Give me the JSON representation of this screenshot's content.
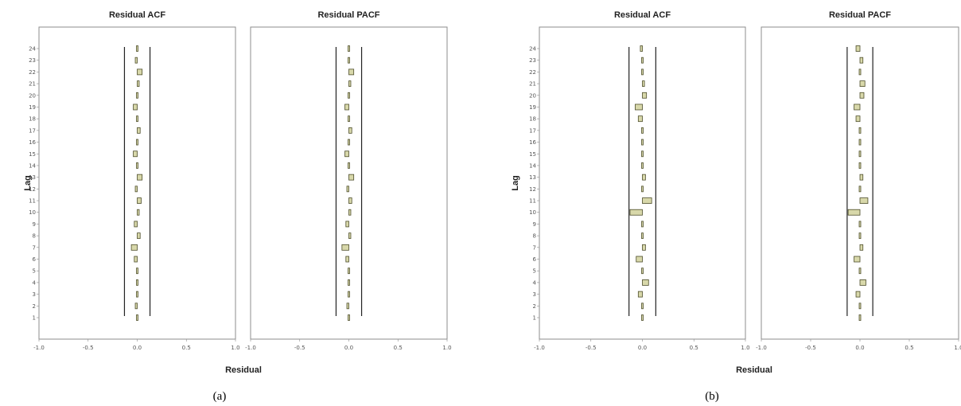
{
  "colors": {
    "bar_fill": "#d8d8aa",
    "bar_stroke": "#4d4d2a",
    "frame": "#8c8c8c",
    "limit": "#222222"
  },
  "figures": [
    {
      "caption": "(a)",
      "ylabel": "Lag",
      "xlabel": "Residual"
    },
    {
      "caption": "(b)",
      "ylabel": "Lag",
      "xlabel": "Residual"
    }
  ],
  "chart_data": [
    {
      "type": "bar",
      "orientation": "horizontal",
      "figure": "(a)",
      "title": "Residual ACF",
      "xlabel": "Residual",
      "ylabel": "Lag",
      "xlim": [
        -1.0,
        1.0
      ],
      "xticks": [
        "-1.0",
        "-0.5",
        "0.0",
        "0.5",
        "1.0"
      ],
      "categories": [
        1,
        2,
        3,
        4,
        5,
        6,
        7,
        8,
        9,
        10,
        11,
        12,
        13,
        14,
        15,
        16,
        17,
        18,
        19,
        20,
        21,
        22,
        23,
        24
      ],
      "values": [
        0.01,
        -0.02,
        0.01,
        0.0,
        -0.01,
        -0.03,
        -0.06,
        0.03,
        -0.03,
        0.02,
        0.04,
        -0.02,
        0.05,
        -0.01,
        -0.04,
        0.01,
        0.03,
        -0.01,
        -0.04,
        0.01,
        0.02,
        0.05,
        -0.02,
        0.01
      ],
      "confidence_limits": [
        -0.13,
        0.13
      ]
    },
    {
      "type": "bar",
      "orientation": "horizontal",
      "figure": "(a)",
      "title": "Residual PACF",
      "xlabel": "Residual",
      "ylabel": "Lag",
      "xlim": [
        -1.0,
        1.0
      ],
      "xticks": [
        "-1.0",
        "-0.5",
        "0.0",
        "0.5",
        "1.0"
      ],
      "categories": [
        1,
        2,
        3,
        4,
        5,
        6,
        7,
        8,
        9,
        10,
        11,
        12,
        13,
        14,
        15,
        16,
        17,
        18,
        19,
        20,
        21,
        22,
        23,
        24
      ],
      "values": [
        0.01,
        -0.02,
        0.01,
        0.0,
        -0.01,
        -0.03,
        -0.07,
        0.02,
        -0.03,
        0.02,
        0.03,
        -0.02,
        0.05,
        -0.01,
        -0.04,
        0.01,
        0.03,
        -0.01,
        -0.04,
        0.01,
        0.02,
        0.05,
        -0.01,
        0.01
      ],
      "confidence_limits": [
        -0.13,
        0.13
      ]
    },
    {
      "type": "bar",
      "orientation": "horizontal",
      "figure": "(b)",
      "title": "Residual ACF",
      "xlabel": "Residual",
      "ylabel": "Lag",
      "xlim": [
        -1.0,
        1.0
      ],
      "xticks": [
        "-1.0",
        "-0.5",
        "0.0",
        "0.5",
        "1.0"
      ],
      "categories": [
        1,
        2,
        3,
        4,
        5,
        6,
        7,
        8,
        9,
        10,
        11,
        12,
        13,
        14,
        15,
        16,
        17,
        18,
        19,
        20,
        21,
        22,
        23,
        24
      ],
      "values": [
        0.01,
        0.0,
        -0.04,
        0.06,
        -0.01,
        -0.06,
        0.03,
        0.0,
        0.01,
        -0.12,
        0.09,
        -0.01,
        0.03,
        -0.01,
        0.0,
        -0.01,
        0.0,
        -0.04,
        -0.07,
        0.04,
        0.02,
        0.0,
        0.0,
        -0.02
      ],
      "confidence_limits": [
        -0.13,
        0.13
      ]
    },
    {
      "type": "bar",
      "orientation": "horizontal",
      "figure": "(b)",
      "title": "Residual PACF",
      "xlabel": "Residual",
      "ylabel": "Lag",
      "xlim": [
        -1.0,
        1.0
      ],
      "xticks": [
        "-1.0",
        "-0.5",
        "0.0",
        "0.5",
        "1.0"
      ],
      "categories": [
        1,
        2,
        3,
        4,
        5,
        6,
        7,
        8,
        9,
        10,
        11,
        12,
        13,
        14,
        15,
        16,
        17,
        18,
        19,
        20,
        21,
        22,
        23,
        24
      ],
      "values": [
        0.01,
        0.0,
        -0.04,
        0.06,
        -0.01,
        -0.06,
        0.03,
        0.0,
        0.01,
        -0.12,
        0.08,
        -0.01,
        0.03,
        -0.01,
        0.0,
        -0.01,
        0.0,
        -0.04,
        -0.06,
        0.04,
        0.05,
        0.0,
        0.03,
        -0.04
      ],
      "confidence_limits": [
        -0.13,
        0.13
      ]
    }
  ]
}
